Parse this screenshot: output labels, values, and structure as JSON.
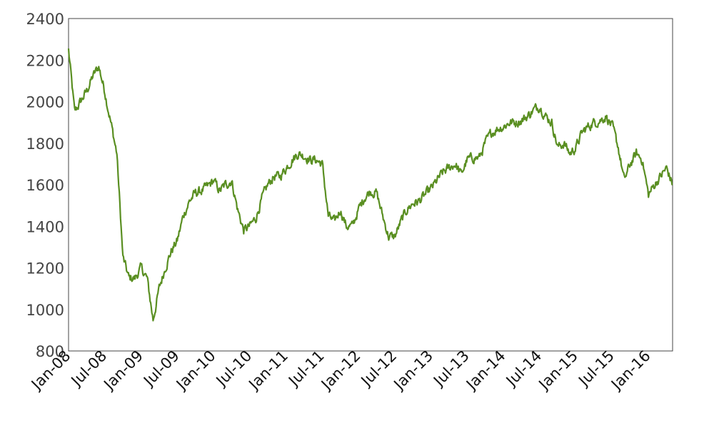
{
  "chart_data": {
    "type": "line",
    "title": "",
    "xlabel": "",
    "ylabel": "",
    "ylim": [
      800,
      2400
    ],
    "yticks": [
      800,
      1000,
      1200,
      1400,
      1600,
      1800,
      2000,
      2200,
      2400
    ],
    "xticks": [
      "Jan-08",
      "Jul-08",
      "Jan-09",
      "Jul-09",
      "Jan-10",
      "Jul-10",
      "Jan-11",
      "Jul-11",
      "Jan-12",
      "Jul-12",
      "Jan-13",
      "Jul-13",
      "Jan-14",
      "Jul-14",
      "Jan-15",
      "Jul-15",
      "Jan-16"
    ],
    "xlim": [
      "2008-01",
      "2016-05"
    ],
    "grid": false,
    "line_color": "#5a8f22",
    "series": [
      {
        "x": [
          "2008-01",
          "2008-02",
          "2008-03",
          "2008-04",
          "2008-05",
          "2008-06",
          "2008-07",
          "2008-08",
          "2008-09",
          "2008-10",
          "2008-11",
          "2008-12",
          "2009-01",
          "2009-02",
          "2009-03",
          "2009-04",
          "2009-05",
          "2009-06",
          "2009-07",
          "2009-08",
          "2009-09",
          "2009-10",
          "2009-11",
          "2009-12",
          "2010-01",
          "2010-02",
          "2010-03",
          "2010-04",
          "2010-05",
          "2010-06",
          "2010-07",
          "2010-08",
          "2010-09",
          "2010-10",
          "2010-11",
          "2010-12",
          "2011-01",
          "2011-02",
          "2011-03",
          "2011-04",
          "2011-05",
          "2011-06",
          "2011-07",
          "2011-08",
          "2011-09",
          "2011-10",
          "2011-11",
          "2011-12",
          "2012-01",
          "2012-02",
          "2012-03",
          "2012-04",
          "2012-05",
          "2012-06",
          "2012-07",
          "2012-08",
          "2012-09",
          "2012-10",
          "2012-11",
          "2012-12",
          "2013-01",
          "2013-02",
          "2013-03",
          "2013-04",
          "2013-05",
          "2013-06",
          "2013-07",
          "2013-08",
          "2013-09",
          "2013-10",
          "2013-11",
          "2013-12",
          "2014-01",
          "2014-02",
          "2014-03",
          "2014-04",
          "2014-05",
          "2014-06",
          "2014-07",
          "2014-08",
          "2014-09",
          "2014-10",
          "2014-11",
          "2014-12",
          "2015-01",
          "2015-02",
          "2015-03",
          "2015-04",
          "2015-05",
          "2015-06",
          "2015-07",
          "2015-08",
          "2015-09",
          "2015-10",
          "2015-11",
          "2015-12",
          "2016-01",
          "2016-02",
          "2016-03",
          "2016-04",
          "2016-05"
        ],
        "y": [
          2250,
          1950,
          2000,
          2050,
          2120,
          2170,
          2050,
          1900,
          1750,
          1250,
          1150,
          1150,
          1200,
          1150,
          950,
          1100,
          1200,
          1280,
          1330,
          1450,
          1520,
          1560,
          1570,
          1590,
          1620,
          1570,
          1600,
          1620,
          1480,
          1380,
          1400,
          1440,
          1530,
          1600,
          1640,
          1640,
          1680,
          1720,
          1750,
          1740,
          1720,
          1720,
          1700,
          1450,
          1420,
          1480,
          1400,
          1400,
          1480,
          1540,
          1570,
          1560,
          1450,
          1350,
          1350,
          1420,
          1480,
          1510,
          1520,
          1550,
          1580,
          1620,
          1660,
          1680,
          1700,
          1650,
          1720,
          1730,
          1730,
          1800,
          1850,
          1870,
          1880,
          1900,
          1900,
          1910,
          1930,
          1960,
          1980,
          1930,
          1900,
          1780,
          1800,
          1750,
          1780,
          1850,
          1880,
          1900,
          1910,
          1930,
          1880,
          1780,
          1620,
          1700,
          1750,
          1720,
          1550,
          1600,
          1640,
          1680,
          1600
        ]
      }
    ]
  }
}
